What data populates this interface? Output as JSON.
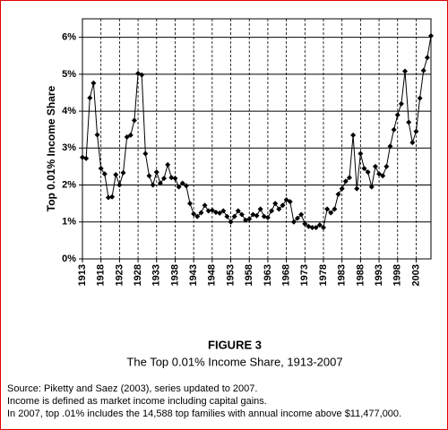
{
  "chart_data": {
    "type": "line",
    "figure_label": "FIGURE 3",
    "title": "The Top 0.01% Income Share, 1913-2007",
    "y_label": "Top 0.01% Income Share",
    "notes": [
      "Source: Piketty and Saez (2003), series updated to 2007.",
      "Income is defined as market income including capital gains.",
      "In 2007, top .01% includes the 14,588 top families with annual income above $11,477,000."
    ],
    "color": "#000000",
    "x": [
      1913,
      1914,
      1915,
      1916,
      1917,
      1918,
      1919,
      1920,
      1921,
      1922,
      1923,
      1924,
      1925,
      1926,
      1927,
      1928,
      1929,
      1930,
      1931,
      1932,
      1933,
      1934,
      1935,
      1936,
      1937,
      1938,
      1939,
      1940,
      1941,
      1942,
      1943,
      1944,
      1945,
      1946,
      1947,
      1948,
      1949,
      1950,
      1951,
      1952,
      1953,
      1954,
      1955,
      1956,
      1957,
      1958,
      1959,
      1960,
      1961,
      1962,
      1963,
      1964,
      1965,
      1966,
      1967,
      1968,
      1969,
      1970,
      1971,
      1972,
      1973,
      1974,
      1975,
      1976,
      1977,
      1978,
      1979,
      1980,
      1981,
      1982,
      1983,
      1984,
      1985,
      1986,
      1987,
      1988,
      1989,
      1990,
      1991,
      1992,
      1993,
      1994,
      1995,
      1996,
      1997,
      1998,
      1999,
      2000,
      2001,
      2002,
      2003,
      2004,
      2005,
      2006,
      2007
    ],
    "values": [
      2.75,
      2.72,
      4.36,
      4.76,
      3.36,
      2.45,
      2.3,
      1.66,
      1.68,
      2.28,
      2.0,
      2.33,
      3.3,
      3.35,
      3.75,
      5.02,
      4.98,
      2.85,
      2.25,
      2.0,
      2.35,
      2.05,
      2.18,
      2.55,
      2.2,
      2.18,
      1.95,
      2.05,
      1.98,
      1.5,
      1.22,
      1.15,
      1.25,
      1.45,
      1.3,
      1.32,
      1.26,
      1.24,
      1.3,
      1.15,
      1.0,
      1.15,
      1.3,
      1.2,
      1.05,
      1.08,
      1.2,
      1.17,
      1.35,
      1.15,
      1.12,
      1.3,
      1.5,
      1.35,
      1.45,
      1.6,
      1.55,
      1.0,
      1.1,
      1.2,
      0.95,
      0.88,
      0.85,
      0.85,
      0.92,
      0.85,
      1.35,
      1.25,
      1.35,
      1.75,
      1.9,
      2.1,
      2.2,
      3.35,
      1.9,
      2.85,
      2.45,
      2.35,
      1.95,
      2.5,
      2.3,
      2.25,
      2.5,
      3.05,
      3.5,
      3.9,
      4.2,
      5.08,
      3.7,
      3.15,
      3.45,
      4.35,
      5.1,
      5.45,
      6.04
    ],
    "xlim": [
      1913,
      2007
    ],
    "xticks": [
      1913,
      1918,
      1923,
      1928,
      1933,
      1938,
      1943,
      1948,
      1953,
      1958,
      1963,
      1968,
      1973,
      1978,
      1983,
      1988,
      1993,
      1998,
      2003
    ],
    "ylim": [
      0,
      6.5
    ],
    "yticks": [
      {
        "value": 0,
        "label": "0%"
      },
      {
        "value": 1,
        "label": "1%"
      },
      {
        "value": 2,
        "label": "2%"
      },
      {
        "value": 3,
        "label": "3%"
      },
      {
        "value": 4,
        "label": "4%"
      },
      {
        "value": 5,
        "label": "5%"
      },
      {
        "value": 6,
        "label": "6%"
      }
    ],
    "grid": true
  }
}
